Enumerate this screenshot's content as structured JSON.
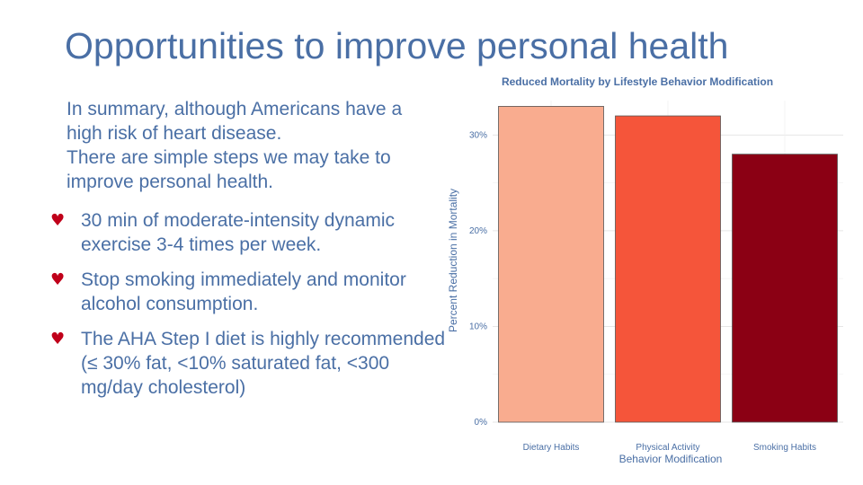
{
  "slide": {
    "title": "Opportunities to improve personal health",
    "summary_lines": [
      "In summary, although Americans have a",
      "high risk of heart disease.",
      "There are simple steps we may take to",
      "improve personal health."
    ],
    "bullets": [
      "30 min of moderate-intensity dynamic exercise 3-4 times per week.",
      "Stop smoking immediately and monitor alcohol consumption.",
      "The AHA Step I diet is highly recommended (≤ 30% fat, <10% saturated fat, <300 mg/day cholesterol)"
    ],
    "bullet_icon": "heart-icon",
    "bullet_color": "#c0001a",
    "text_color": "#4a6fa5"
  },
  "chart_data": {
    "type": "bar",
    "title": "Reduced Mortality by Lifestyle Behavior Modification",
    "xlabel": "Behavior Modification",
    "ylabel": "Percent Reduction in Mortality",
    "categories": [
      "Dietary Habits",
      "Physical Activity",
      "Smoking Habits"
    ],
    "values": [
      33,
      32,
      28
    ],
    "colors": [
      "#f9ac8f",
      "#f5553a",
      "#8b0014"
    ],
    "ylim": [
      0,
      33
    ],
    "yticks": [
      0,
      10,
      20,
      30
    ],
    "ytick_labels": [
      "0%",
      "10%",
      "20%",
      "30%"
    ],
    "grid": true,
    "legend": "none"
  }
}
